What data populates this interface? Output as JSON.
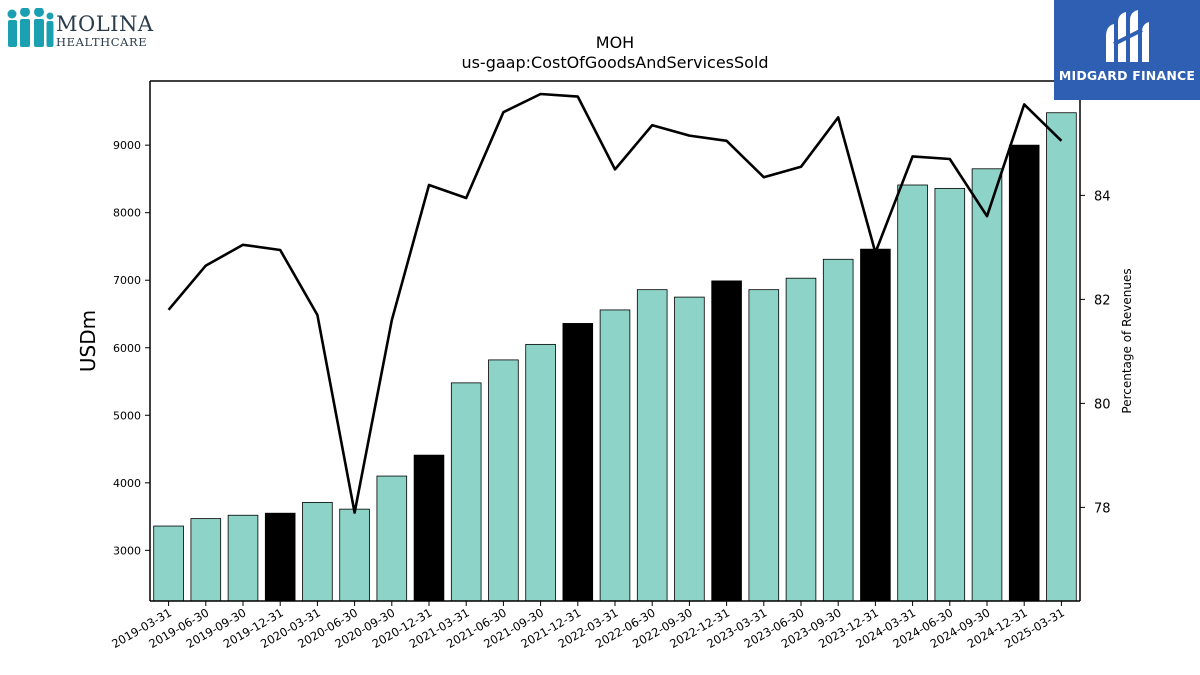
{
  "logos": {
    "left_brand": "MOLINA",
    "left_sub": "HEALTHCARE",
    "right_brand": "MIDGARD FINANCE"
  },
  "colors": {
    "bar_regular": "#8dd3c7",
    "bar_highlight": "#000000",
    "line": "#000000",
    "logo_right_bg": "#2f5fb3",
    "logo_left_figures": "#1aa0b0"
  },
  "chart_data": {
    "type": "bar",
    "title": "MOH",
    "subtitle": "us-gaap:CostOfGoodsAndServicesSold",
    "ylabel": "USDm",
    "y2label": "Percentage of Revenues",
    "ylim": [
      2250,
      9950
    ],
    "y2lim": [
      76.2,
      86.2
    ],
    "yticks": [
      3000,
      4000,
      5000,
      6000,
      7000,
      8000,
      9000
    ],
    "y2ticks": [
      78,
      80,
      82,
      84,
      86
    ],
    "categories": [
      "2019-03-31",
      "2019-06-30",
      "2019-09-30",
      "2019-12-31",
      "2020-03-31",
      "2020-06-30",
      "2020-09-30",
      "2020-12-31",
      "2021-03-31",
      "2021-06-30",
      "2021-09-30",
      "2021-12-31",
      "2022-03-31",
      "2022-06-30",
      "2022-09-30",
      "2022-12-31",
      "2023-03-31",
      "2023-06-30",
      "2023-09-30",
      "2023-12-31",
      "2024-03-31",
      "2024-06-30",
      "2024-09-30",
      "2024-12-31",
      "2025-03-31"
    ],
    "series": [
      {
        "type": "bar",
        "axis": "left",
        "values": [
          3360,
          3470,
          3520,
          3550,
          3710,
          3610,
          4100,
          4410,
          5480,
          5820,
          6050,
          6360,
          6560,
          6860,
          6750,
          6990,
          6860,
          7030,
          7310,
          7460,
          8410,
          8360,
          8650,
          9000,
          9480
        ],
        "highlight": [
          false,
          false,
          false,
          true,
          false,
          false,
          false,
          true,
          false,
          false,
          false,
          true,
          false,
          false,
          false,
          true,
          false,
          false,
          false,
          true,
          false,
          false,
          false,
          true,
          false
        ]
      },
      {
        "type": "line",
        "axis": "right",
        "values": [
          81.8,
          82.65,
          83.05,
          82.95,
          81.7,
          77.9,
          81.6,
          84.2,
          83.95,
          85.6,
          85.95,
          85.9,
          84.5,
          85.35,
          85.15,
          85.05,
          84.35,
          84.55,
          85.5,
          82.9,
          84.75,
          84.7,
          83.6,
          85.75,
          85.05
        ]
      }
    ]
  }
}
